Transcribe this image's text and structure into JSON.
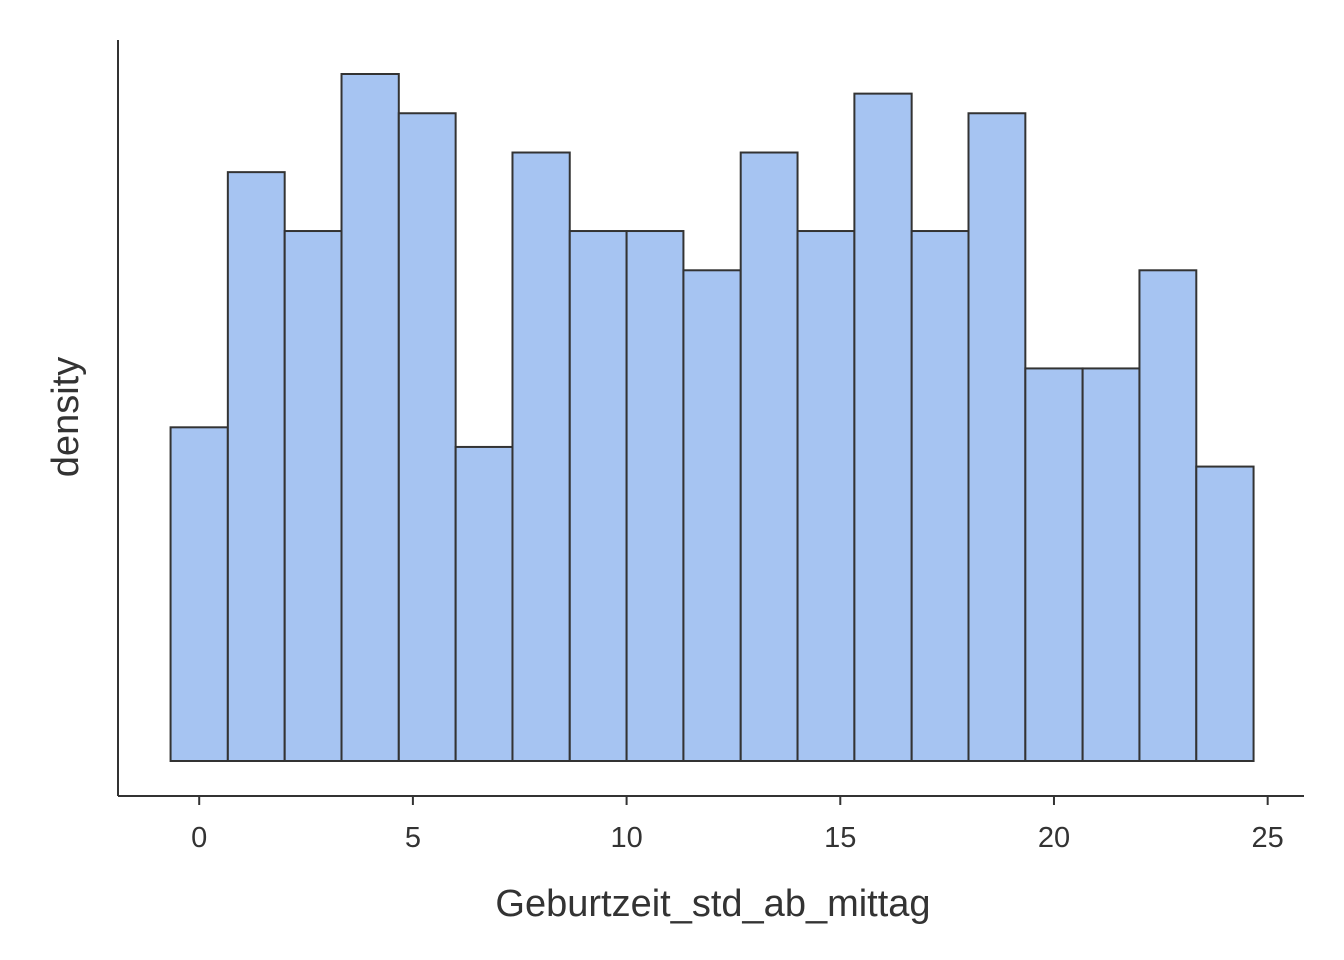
{
  "chart_data": {
    "type": "bar",
    "subtype": "histogram",
    "title": "",
    "xlabel": "Geburtzeit_std_ab_mittag",
    "ylabel": "density",
    "xlim": [
      -1.9,
      25.85
    ],
    "ylim": [
      0,
      35
    ],
    "y_ticks_shown": false,
    "grid": false,
    "legend": "none",
    "x_ticks": [
      0,
      5,
      10,
      15,
      20,
      25
    ],
    "x_tick_labels": [
      "0",
      "5",
      "10",
      "15",
      "20",
      "25"
    ],
    "bins": [
      {
        "x0": -0.67,
        "x1": 0.67,
        "value": 17
      },
      {
        "x0": 0.67,
        "x1": 2.0,
        "value": 30
      },
      {
        "x0": 2.0,
        "x1": 3.33,
        "value": 27
      },
      {
        "x0": 3.33,
        "x1": 4.67,
        "value": 35
      },
      {
        "x0": 4.67,
        "x1": 6.0,
        "value": 33
      },
      {
        "x0": 6.0,
        "x1": 7.33,
        "value": 16
      },
      {
        "x0": 7.33,
        "x1": 8.67,
        "value": 31
      },
      {
        "x0": 8.67,
        "x1": 10.0,
        "value": 27
      },
      {
        "x0": 10.0,
        "x1": 11.33,
        "value": 27
      },
      {
        "x0": 11.33,
        "x1": 12.67,
        "value": 25
      },
      {
        "x0": 12.67,
        "x1": 14.0,
        "value": 31
      },
      {
        "x0": 14.0,
        "x1": 15.33,
        "value": 27
      },
      {
        "x0": 15.33,
        "x1": 16.67,
        "value": 34
      },
      {
        "x0": 16.67,
        "x1": 18.0,
        "value": 27
      },
      {
        "x0": 18.0,
        "x1": 19.33,
        "value": 33
      },
      {
        "x0": 19.33,
        "x1": 20.67,
        "value": 20
      },
      {
        "x0": 20.67,
        "x1": 22.0,
        "value": 20
      },
      {
        "x0": 22.0,
        "x1": 23.33,
        "value": 25
      },
      {
        "x0": 23.33,
        "x1": 24.67,
        "value": 15
      }
    ],
    "colors": {
      "bar_fill": "#a6c4f2",
      "bar_stroke": "#333333",
      "axis": "#333333",
      "text": "#333333"
    }
  }
}
